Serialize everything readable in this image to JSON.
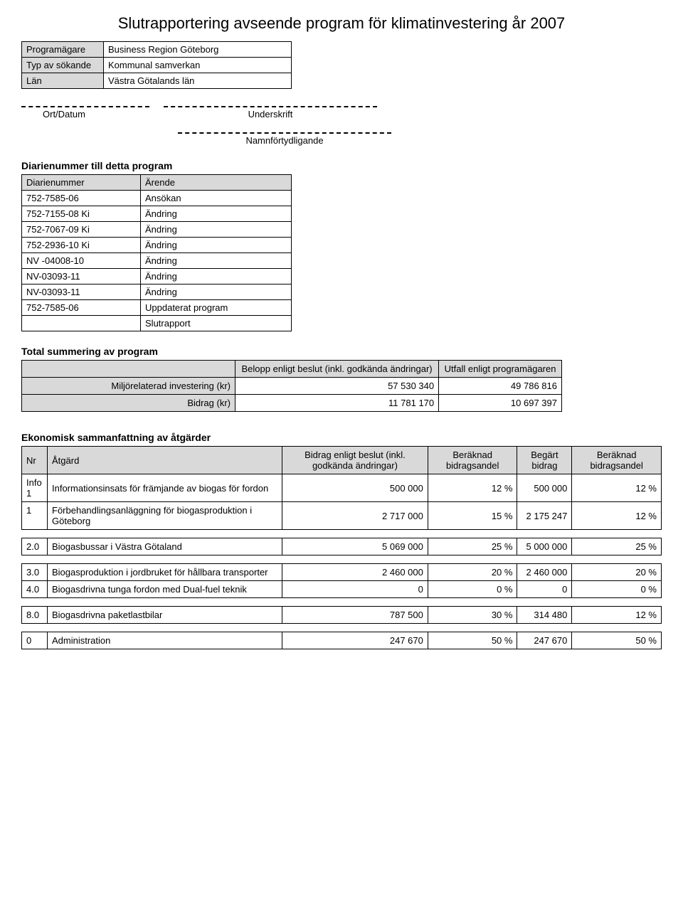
{
  "title": "Slutrapportering avseende program för klimatinvestering år 2007",
  "info": {
    "owner_label": "Programägare",
    "owner_value": "Business Region Göteborg",
    "applicant_type_label": "Typ av sökande",
    "applicant_type_value": "Kommunal samverkan",
    "county_label": "Län",
    "county_value": "Västra Götalands län"
  },
  "signature": {
    "place_date": "Ort/Datum",
    "underskrift": "Underskrift",
    "namn": "Namnförtydligande"
  },
  "diarie_heading": "Diarienummer till detta program",
  "diarie_cols": {
    "nr": "Diarienummer",
    "arende": "Ärende"
  },
  "diarie_rows": [
    {
      "nr": "752-7585-06",
      "arende": "Ansökan"
    },
    {
      "nr": "752-7155-08 Ki",
      "arende": "Ändring"
    },
    {
      "nr": "752-7067-09 Ki",
      "arende": "Ändring"
    },
    {
      "nr": "752-2936-10 Ki",
      "arende": "Ändring"
    },
    {
      "nr": "NV -04008-10",
      "arende": "Ändring"
    },
    {
      "nr": "NV-03093-11",
      "arende": "Ändring"
    },
    {
      "nr": "NV-03093-11",
      "arende": "Ändring"
    },
    {
      "nr": "752-7585-06",
      "arende": "Uppdaterat program"
    },
    {
      "nr": "",
      "arende": "Slutrapport"
    }
  ],
  "summary_heading": "Total summering av program",
  "summary_cols": {
    "blank": "",
    "belopp": "Belopp enligt beslut (inkl. godkända ändringar)",
    "utfall": "Utfall enligt programägaren"
  },
  "summary_rows": [
    {
      "label": "Miljörelaterad investering (kr)",
      "belopp": "57 530 340",
      "utfall": "49 786 816"
    },
    {
      "label": "Bidrag (kr)",
      "belopp": "11 781 170",
      "utfall": "10 697 397"
    }
  ],
  "eco_heading": "Ekonomisk sammanfattning av åtgärder",
  "eco_cols": {
    "nr": "Nr",
    "atgard": "Åtgärd",
    "bidrag_beslut": "Bidrag enligt beslut (inkl. godkända ändringar)",
    "beraknad1": "Beräknad bidragsandel",
    "begart": "Begärt bidrag",
    "beraknad2": "Beräknad bidragsandel"
  },
  "eco_rows": [
    {
      "nr": "Info 1",
      "atgard": "Informationsinsats för främjande av biogas för fordon",
      "c1": "500 000",
      "c2": "12 %",
      "c3": "500 000",
      "c4": "12 %"
    },
    {
      "nr": "1",
      "atgard": "Förbehandlingsanläggning för biogasproduktion i Göteborg",
      "c1": "2 717 000",
      "c2": "15 %",
      "c3": "2 175 247",
      "c4": "12 %"
    },
    {
      "nr": "2.0",
      "atgard": "Biogasbussar i Västra Götaland",
      "c1": "5 069 000",
      "c2": "25 %",
      "c3": "5 000 000",
      "c4": "25 %"
    },
    {
      "nr": "3.0",
      "atgard": "Biogasproduktion i jordbruket för hållbara transporter",
      "c1": "2 460 000",
      "c2": "20 %",
      "c3": "2 460 000",
      "c4": "20 %"
    },
    {
      "nr": "4.0",
      "atgard": "Biogasdrivna tunga fordon med Dual-fuel teknik",
      "c1": "0",
      "c2": "0 %",
      "c3": "0",
      "c4": "0 %"
    },
    {
      "nr": "8.0",
      "atgard": "Biogasdrivna paketlastbilar",
      "c1": "787 500",
      "c2": "30 %",
      "c3": "314 480",
      "c4": "12 %"
    },
    {
      "nr": "0",
      "atgard": "Administration",
      "c1": "247 670",
      "c2": "50 %",
      "c3": "247 670",
      "c4": "50 %"
    }
  ]
}
